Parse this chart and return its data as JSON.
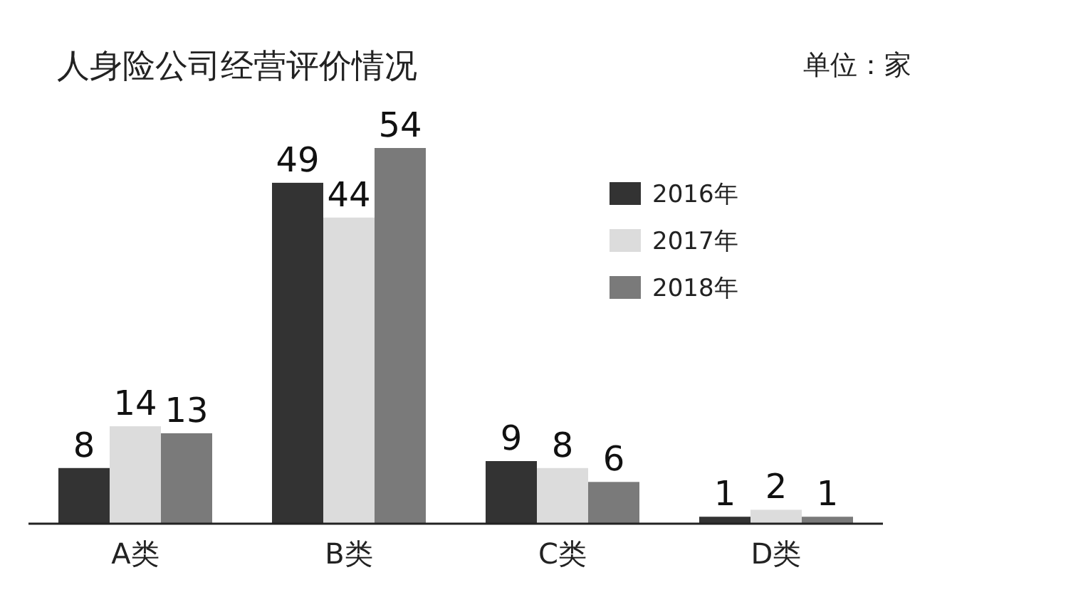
{
  "chart_data": {
    "type": "bar",
    "title": "人身险公司经营评价情况",
    "annotations": [
      "单位：家"
    ],
    "categories": [
      "A类",
      "B类",
      "C类",
      "D类"
    ],
    "series": [
      {
        "name": "2016年",
        "color": "#333333",
        "values": [
          8,
          49,
          9,
          1
        ]
      },
      {
        "name": "2017年",
        "color": "#dcdcdc",
        "values": [
          14,
          44,
          8,
          2
        ]
      },
      {
        "name": "2018年",
        "color": "#7a7a7a",
        "values": [
          13,
          54,
          6,
          1
        ]
      }
    ],
    "data_labels": true,
    "legend": "top right",
    "tick_labels": "x"
  }
}
